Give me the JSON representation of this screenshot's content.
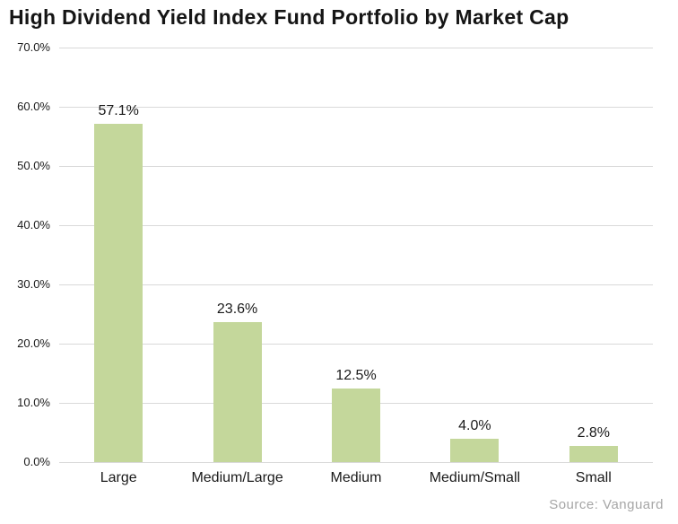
{
  "title": "High Dividend Yield Index Fund Portfolio by Market Cap",
  "source": "Source: Vanguard",
  "colors": {
    "bar_fill": "#C4D79B",
    "gridline": "#D9D9D9",
    "text": "#1a1a1a",
    "source_text": "#A6A6A6",
    "background": "#FFFFFF"
  },
  "chart_data": {
    "type": "bar",
    "title": "High Dividend Yield Index Fund Portfolio by Market Cap",
    "categories": [
      "Large",
      "Medium/Large",
      "Medium",
      "Medium/Small",
      "Small"
    ],
    "values": [
      57.1,
      23.6,
      12.5,
      4.0,
      2.8
    ],
    "data_labels": [
      "57.1%",
      "23.6%",
      "12.5%",
      "4.0%",
      "2.8%"
    ],
    "xlabel": "",
    "ylabel": "",
    "ylim": [
      0,
      70
    ],
    "ytick_step": 10,
    "ytick_labels": [
      "0.0%",
      "10.0%",
      "20.0%",
      "30.0%",
      "40.0%",
      "50.0%",
      "60.0%",
      "70.0%"
    ],
    "grid": true,
    "legend": false,
    "annotations": [
      "Source: Vanguard"
    ]
  }
}
